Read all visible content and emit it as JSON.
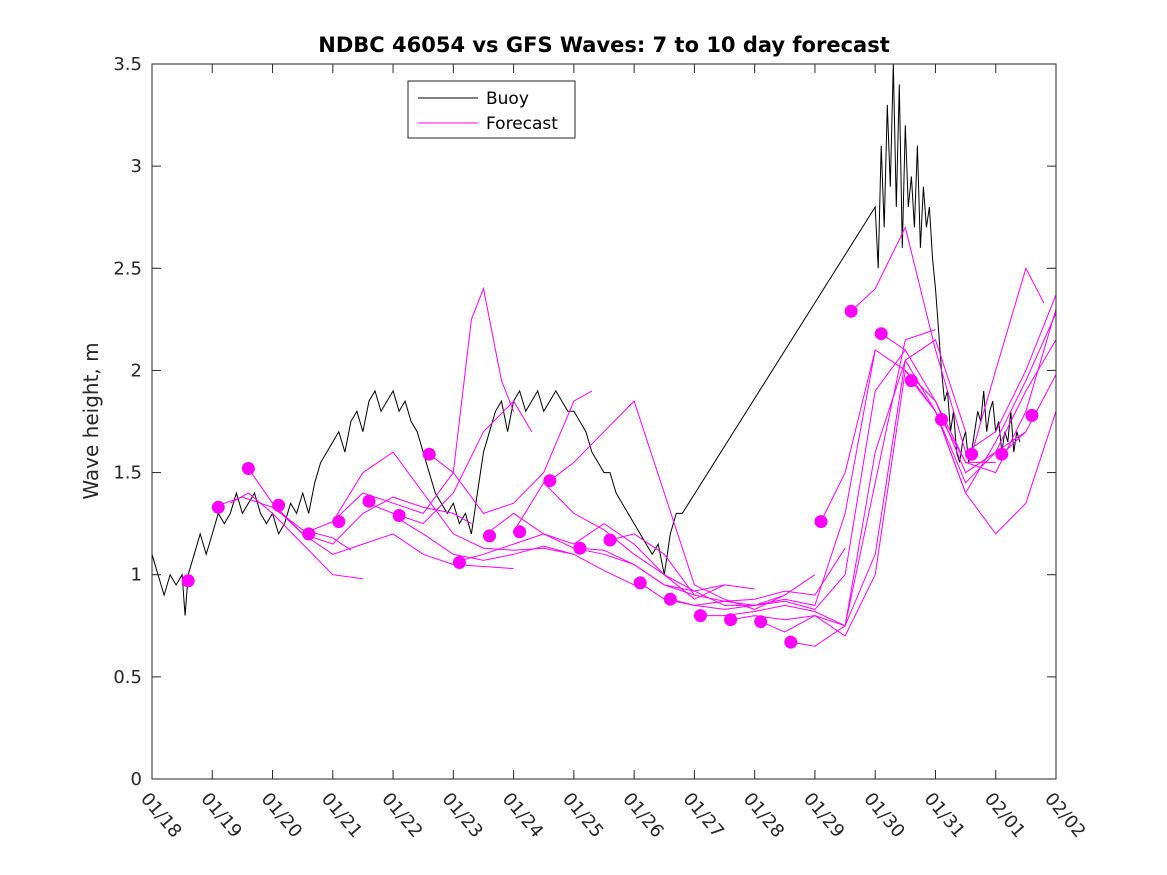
{
  "chart_data": {
    "type": "line",
    "title": "NDBC 46054 vs GFS Waves: 7 to 10 day forecast",
    "xlabel": "",
    "ylabel": "Wave height, m",
    "xlim": [
      0,
      15
    ],
    "ylim": [
      0,
      3.5
    ],
    "x_ticks": [
      0,
      1,
      2,
      3,
      4,
      5,
      6,
      7,
      8,
      9,
      10,
      11,
      12,
      13,
      14,
      15
    ],
    "x_tick_labels": [
      "01/18",
      "01/19",
      "01/20",
      "01/21",
      "01/22",
      "01/23",
      "01/24",
      "01/25",
      "01/26",
      "01/27",
      "01/28",
      "01/29",
      "01/30",
      "01/31",
      "02/01",
      "02/02"
    ],
    "y_ticks": [
      0,
      0.5,
      1,
      1.5,
      2,
      2.5,
      3,
      3.5
    ],
    "y_tick_labels": [
      "0",
      "0.5",
      "1",
      "1.5",
      "2",
      "2.5",
      "3",
      "3.5"
    ],
    "legend": {
      "position": "top-left",
      "entries": [
        {
          "label": "Buoy",
          "color": "#000000"
        },
        {
          "label": "Forecast",
          "color": "#ff00ff"
        }
      ]
    },
    "series": [
      {
        "name": "Buoy",
        "color": "#000000",
        "x": [
          0.0,
          0.1,
          0.2,
          0.3,
          0.4,
          0.5,
          0.55,
          0.6,
          0.7,
          0.8,
          0.9,
          1.0,
          1.1,
          1.2,
          1.3,
          1.4,
          1.5,
          1.6,
          1.7,
          1.8,
          1.9,
          2.0,
          2.1,
          2.2,
          2.3,
          2.4,
          2.5,
          2.6,
          2.7,
          2.8,
          2.9,
          3.0,
          3.1,
          3.2,
          3.3,
          3.4,
          3.5,
          3.6,
          3.7,
          3.8,
          3.9,
          4.0,
          4.1,
          4.2,
          4.3,
          4.4,
          4.5,
          4.6,
          4.7,
          4.8,
          4.9,
          5.0,
          5.1,
          5.2,
          5.3,
          5.4,
          5.5,
          5.6,
          5.7,
          5.8,
          5.9,
          6.0,
          6.1,
          6.2,
          6.3,
          6.4,
          6.5,
          6.6,
          6.7,
          6.8,
          6.9,
          7.0,
          7.1,
          7.2,
          7.3,
          7.4,
          7.5,
          7.6,
          7.7,
          7.8,
          7.9,
          8.0,
          8.1,
          8.2,
          8.3,
          8.4,
          8.5,
          8.6,
          8.7,
          8.8,
          12.0,
          12.05,
          12.1,
          12.15,
          12.2,
          12.25,
          12.3,
          12.35,
          12.4,
          12.45,
          12.5,
          12.55,
          12.6,
          12.65,
          12.7,
          12.75,
          12.8,
          12.85,
          12.9,
          12.95,
          13.0,
          13.05,
          13.1,
          13.15,
          13.2,
          13.25,
          13.3,
          13.35,
          13.4,
          13.45,
          13.5,
          13.55,
          13.6,
          13.65,
          13.7,
          13.75,
          13.8,
          13.85,
          13.9,
          13.95,
          14.0,
          14.05,
          14.1,
          14.15,
          14.2,
          14.25,
          14.3,
          14.35,
          14.4
        ],
        "y": [
          1.1,
          1.0,
          0.9,
          1.0,
          0.95,
          1.0,
          0.8,
          1.0,
          1.1,
          1.2,
          1.1,
          1.2,
          1.3,
          1.25,
          1.3,
          1.4,
          1.3,
          1.35,
          1.4,
          1.3,
          1.25,
          1.3,
          1.2,
          1.25,
          1.35,
          1.3,
          1.4,
          1.3,
          1.45,
          1.55,
          1.6,
          1.65,
          1.7,
          1.6,
          1.75,
          1.8,
          1.7,
          1.85,
          1.9,
          1.8,
          1.85,
          1.9,
          1.8,
          1.85,
          1.75,
          1.7,
          1.6,
          1.5,
          1.4,
          1.35,
          1.3,
          1.35,
          1.25,
          1.3,
          1.2,
          1.4,
          1.6,
          1.7,
          1.8,
          1.85,
          1.7,
          1.85,
          1.9,
          1.8,
          1.85,
          1.9,
          1.8,
          1.85,
          1.9,
          1.85,
          1.8,
          1.8,
          1.75,
          1.7,
          1.6,
          1.55,
          1.5,
          1.5,
          1.4,
          1.35,
          1.3,
          1.25,
          1.2,
          1.15,
          1.1,
          1.15,
          1.0,
          1.2,
          1.3,
          1.3,
          2.8,
          2.5,
          3.1,
          2.7,
          3.3,
          2.9,
          3.5,
          2.8,
          3.4,
          2.6,
          3.2,
          2.8,
          2.95,
          2.7,
          3.1,
          2.6,
          2.9,
          2.7,
          2.8,
          2.55,
          2.4,
          2.2,
          2.0,
          1.85,
          1.9,
          1.7,
          1.8,
          1.6,
          1.55,
          1.65,
          1.7,
          1.55,
          1.6,
          1.7,
          1.8,
          1.75,
          1.9,
          1.7,
          1.8,
          1.85,
          1.7,
          1.75,
          1.6,
          1.7,
          1.65,
          1.8,
          1.6,
          1.7,
          1.65
        ]
      },
      {
        "name": "Forecast",
        "color": "#ff00ff",
        "x": [
          1.0,
          1.5,
          2.0,
          2.5,
          3.0,
          3.3
        ],
        "y": [
          1.33,
          1.38,
          1.33,
          1.22,
          1.18,
          1.12
        ]
      },
      {
        "name": "Forecast",
        "color": "#ff00ff",
        "x": [
          1.3,
          1.6,
          2.0,
          2.5,
          3.0,
          3.5
        ],
        "y": [
          1.35,
          1.4,
          1.3,
          1.15,
          1.0,
          0.98
        ]
      },
      {
        "name": "Forecast",
        "color": "#ff00ff",
        "x": [
          1.6,
          2.0,
          2.5,
          3.0,
          3.5,
          4.0,
          4.5,
          5.0,
          5.3
        ],
        "y": [
          1.52,
          1.35,
          1.2,
          1.15,
          1.3,
          1.38,
          1.33,
          1.3,
          1.25
        ]
      },
      {
        "name": "Forecast",
        "color": "#ff00ff",
        "x": [
          2.0,
          2.5,
          3.0,
          3.5,
          4.0,
          4.5,
          5.0,
          5.5,
          6.0
        ],
        "y": [
          1.34,
          1.2,
          1.1,
          1.15,
          1.2,
          1.1,
          1.05,
          1.04,
          1.03
        ]
      },
      {
        "name": "Forecast",
        "color": "#ff00ff",
        "x": [
          2.5,
          3.0,
          3.5,
          4.0,
          4.5,
          5.0,
          5.3,
          5.5,
          5.8,
          6.0
        ],
        "y": [
          1.2,
          1.26,
          1.4,
          1.35,
          1.3,
          1.5,
          2.25,
          2.4,
          1.95,
          1.8
        ]
      },
      {
        "name": "Forecast",
        "color": "#ff00ff",
        "x": [
          3.0,
          3.5,
          4.0,
          4.5,
          5.0,
          5.5,
          6.0,
          6.5,
          7.0
        ],
        "y": [
          1.26,
          1.5,
          1.6,
          1.4,
          1.2,
          1.13,
          1.12,
          1.13,
          1.1
        ]
      },
      {
        "name": "Forecast",
        "color": "#ff00ff",
        "x": [
          3.5,
          4.0,
          4.5,
          5.0,
          5.5,
          6.0,
          6.3
        ],
        "y": [
          1.36,
          1.3,
          1.25,
          1.4,
          1.7,
          1.85,
          1.7
        ]
      },
      {
        "name": "Forecast",
        "color": "#ff00ff",
        "x": [
          4.0,
          4.5,
          5.0,
          5.5,
          6.0,
          6.5,
          7.0,
          7.5,
          8.0
        ],
        "y": [
          1.29,
          1.2,
          1.1,
          1.07,
          1.1,
          1.14,
          1.1,
          1.02,
          0.95
        ]
      },
      {
        "name": "Forecast",
        "color": "#ff00ff",
        "x": [
          4.6,
          5.0,
          5.5,
          6.0,
          6.5,
          7.0,
          7.3
        ],
        "y": [
          1.59,
          1.5,
          1.3,
          1.35,
          1.5,
          1.85,
          1.9
        ]
      },
      {
        "name": "Forecast",
        "color": "#ff00ff",
        "x": [
          5.0,
          5.5,
          6.0,
          6.5,
          7.0,
          7.5,
          8.0,
          8.5,
          9.0
        ],
        "y": [
          1.06,
          1.1,
          1.15,
          1.2,
          1.13,
          1.1,
          1.05,
          0.95,
          0.9
        ]
      },
      {
        "name": "Forecast",
        "color": "#ff00ff",
        "x": [
          5.5,
          6.0,
          6.5,
          7.0,
          7.5,
          8.0,
          8.5,
          9.0,
          9.5
        ],
        "y": [
          1.19,
          1.3,
          1.2,
          1.15,
          1.25,
          1.15,
          1.0,
          0.88,
          0.95
        ]
      },
      {
        "name": "Forecast",
        "color": "#ff00ff",
        "x": [
          6.0,
          6.5,
          7.0,
          7.5,
          8.0,
          8.5,
          9.0,
          9.5,
          10.0
        ],
        "y": [
          1.21,
          1.45,
          1.3,
          1.22,
          1.1,
          1.0,
          0.92,
          0.95,
          0.93
        ]
      },
      {
        "name": "Forecast",
        "color": "#ff00ff",
        "x": [
          6.6,
          7.0,
          7.5,
          8.0,
          8.5,
          9.0,
          9.5,
          10.0,
          10.5
        ],
        "y": [
          1.46,
          1.55,
          1.7,
          1.85,
          1.4,
          0.95,
          0.88,
          0.83,
          0.9
        ]
      },
      {
        "name": "Forecast",
        "color": "#ff00ff",
        "x": [
          7.1,
          7.5,
          8.0,
          8.5,
          9.0,
          9.5,
          10.0,
          10.5,
          11.0
        ],
        "y": [
          1.13,
          1.12,
          1.05,
          0.95,
          0.92,
          0.85,
          0.85,
          0.9,
          1.0
        ]
      },
      {
        "name": "Forecast",
        "color": "#ff00ff",
        "x": [
          7.6,
          8.0,
          8.5,
          9.0,
          9.5,
          10.0,
          10.5,
          11.0,
          11.5
        ],
        "y": [
          1.17,
          1.2,
          1.1,
          0.9,
          0.87,
          0.88,
          0.92,
          0.9,
          1.13
        ]
      },
      {
        "name": "Forecast",
        "color": "#ff00ff",
        "x": [
          8.1,
          8.5,
          9.0,
          9.5,
          10.0,
          10.5,
          11.0,
          11.5,
          12.0
        ],
        "y": [
          0.96,
          0.88,
          0.85,
          0.87,
          0.85,
          0.88,
          0.85,
          1.3,
          2.1
        ]
      },
      {
        "name": "Forecast",
        "color": "#ff00ff",
        "x": [
          8.6,
          9.0,
          9.5,
          10.0,
          10.5,
          11.0,
          11.5,
          12.0,
          12.5
        ],
        "y": [
          0.88,
          0.85,
          0.83,
          0.85,
          0.87,
          0.83,
          1.0,
          1.9,
          2.1
        ]
      },
      {
        "name": "Forecast",
        "color": "#ff00ff",
        "x": [
          9.1,
          9.5,
          10.0,
          10.5,
          11.0,
          11.5,
          12.0,
          12.5,
          13.0
        ],
        "y": [
          0.8,
          0.8,
          0.82,
          0.85,
          0.82,
          0.75,
          1.45,
          2.15,
          2.2
        ]
      },
      {
        "name": "Forecast",
        "color": "#ff00ff",
        "x": [
          9.6,
          10.0,
          10.5,
          11.0,
          11.5,
          12.0,
          12.5,
          13.0,
          13.5
        ],
        "y": [
          0.78,
          0.8,
          0.78,
          0.8,
          0.75,
          1.1,
          2.05,
          2.15,
          1.7
        ]
      },
      {
        "name": "Forecast",
        "color": "#ff00ff",
        "x": [
          10.1,
          10.5,
          11.0,
          11.5,
          12.0,
          12.5,
          13.0,
          13.5,
          14.0
        ],
        "y": [
          0.77,
          0.72,
          0.8,
          0.7,
          1.0,
          2.0,
          1.85,
          1.55,
          1.55
        ]
      },
      {
        "name": "Forecast",
        "color": "#ff00ff",
        "x": [
          10.6,
          11.0,
          11.5,
          12.0,
          12.5,
          13.0,
          13.5,
          14.0,
          14.5
        ],
        "y": [
          0.67,
          0.65,
          0.75,
          1.6,
          2.05,
          1.8,
          1.45,
          1.6,
          1.7
        ]
      },
      {
        "name": "Forecast",
        "color": "#ff00ff",
        "x": [
          11.1,
          11.5,
          12.0,
          12.5,
          13.0,
          13.5,
          14.0,
          14.5,
          15.0
        ],
        "y": [
          1.26,
          1.5,
          2.1,
          2.0,
          1.8,
          1.4,
          1.65,
          1.95,
          2.28
        ]
      },
      {
        "name": "Forecast",
        "color": "#ff00ff",
        "x": [
          11.6,
          12.0,
          12.5,
          13.0,
          13.5,
          14.0,
          14.5,
          15.0
        ],
        "y": [
          2.29,
          2.4,
          2.7,
          2.1,
          1.6,
          1.7,
          2.0,
          2.37
        ]
      },
      {
        "name": "Forecast",
        "color": "#ff00ff",
        "x": [
          12.1,
          12.5,
          13.0,
          13.5,
          14.0,
          14.5,
          15.0
        ],
        "y": [
          2.18,
          2.1,
          1.85,
          1.5,
          1.6,
          1.9,
          2.15
        ]
      },
      {
        "name": "Forecast",
        "color": "#ff00ff",
        "x": [
          12.6,
          13.0,
          13.5,
          14.0,
          14.5,
          15.0
        ],
        "y": [
          1.95,
          1.8,
          1.4,
          1.2,
          1.35,
          1.8
        ]
      },
      {
        "name": "Forecast",
        "color": "#ff00ff",
        "x": [
          13.1,
          13.5,
          14.0,
          14.5,
          15.0
        ],
        "y": [
          1.76,
          1.55,
          1.5,
          1.8,
          2.3
        ]
      },
      {
        "name": "Forecast",
        "color": "#ff00ff",
        "x": [
          13.6,
          14.0,
          14.5,
          14.8
        ],
        "y": [
          1.59,
          2.0,
          2.5,
          2.33
        ]
      },
      {
        "name": "Forecast",
        "color": "#ff00ff",
        "x": [
          14.1,
          14.5,
          15.0
        ],
        "y": [
          1.59,
          1.7,
          1.98
        ]
      }
    ],
    "markers": {
      "name": "Forecast initial points",
      "color": "#ff00ff",
      "x": [
        0.6,
        1.1,
        1.6,
        2.1,
        2.6,
        3.1,
        3.6,
        4.1,
        4.6,
        5.1,
        5.6,
        6.1,
        6.6,
        7.1,
        7.6,
        8.1,
        8.6,
        9.1,
        9.6,
        10.1,
        10.6,
        11.1,
        11.6,
        12.1,
        12.6,
        13.1,
        13.6,
        14.1,
        14.6
      ],
      "y": [
        0.97,
        1.33,
        1.52,
        1.34,
        1.2,
        1.26,
        1.36,
        1.29,
        1.59,
        1.06,
        1.19,
        1.21,
        1.46,
        1.13,
        1.17,
        0.96,
        0.88,
        0.8,
        0.78,
        0.77,
        0.67,
        1.26,
        2.29,
        2.18,
        1.95,
        1.76,
        1.59,
        1.59,
        1.78
      ]
    }
  }
}
